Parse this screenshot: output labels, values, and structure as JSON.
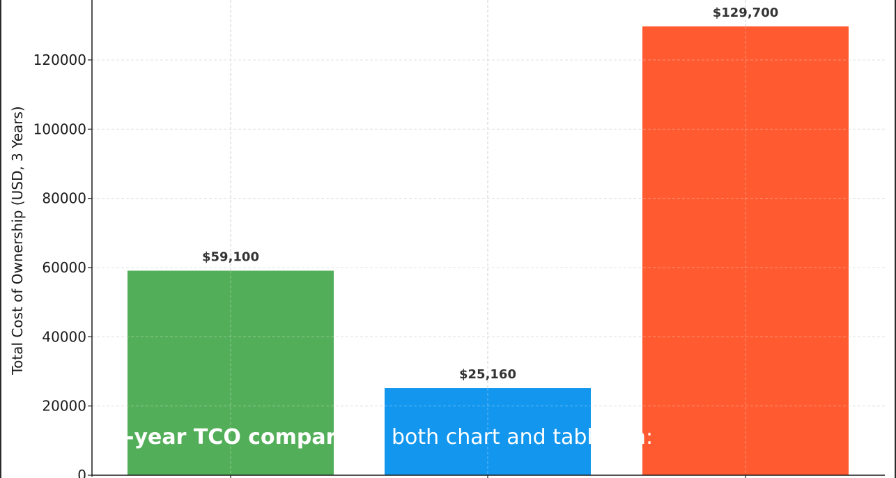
{
  "chart_data": {
    "type": "bar",
    "categories": [
      "",
      "",
      ""
    ],
    "values": [
      59100,
      25160,
      129700
    ],
    "data_labels": [
      "$59,100",
      "$25,160",
      "$129,700"
    ],
    "colors": [
      "#52ae58",
      "#1296ee",
      "#ff5a30"
    ],
    "title": "",
    "xlabel": "",
    "ylabel": "Total Cost of Ownership (USD, 3 Years)",
    "ylim": [
      0,
      130000
    ],
    "yticks": [
      0,
      20000,
      40000,
      60000,
      80000,
      100000,
      120000
    ],
    "ytick_labels": [
      "0",
      "20000",
      "40000",
      "60000",
      "80000",
      "100000",
      "120000"
    ],
    "grid": true,
    "legend": "none"
  },
  "overlay": {
    "part_a": "-year TCO comparis",
    "part_b": "both chart and table",
    "part_c": "n:"
  }
}
